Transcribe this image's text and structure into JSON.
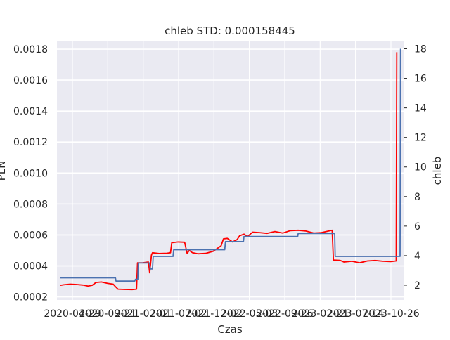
{
  "chart_data": {
    "type": "line",
    "title": "chleb STD: 0.000158445",
    "xlabel": "Czas",
    "ylabel_left": "PLN",
    "ylabel_right": "chleb",
    "x_tick_labels": [
      "2020-04-29",
      "2020-09-21",
      "2021-02-01",
      "2021-07-02",
      "2021-12-02",
      "2022-05-03",
      "2022-09-26",
      "2023-02-21",
      "2023-07-14",
      "2023-10-26"
    ],
    "ylim_left": [
      0.00018,
      0.00185
    ],
    "ylim_right": [
      1.0,
      18.5
    ],
    "y_ticks_left": [
      0.0002,
      0.0004,
      0.0006,
      0.0008,
      0.001,
      0.0012,
      0.0014,
      0.0016,
      0.0018
    ],
    "y_ticks_left_labels": [
      "0.0002",
      "0.0004",
      "0.0006",
      "0.0008",
      "0.0010",
      "0.0012",
      "0.0014",
      "0.0016",
      "0.0018"
    ],
    "y_ticks_right": [
      2,
      4,
      6,
      8,
      10,
      12,
      14,
      16,
      18
    ],
    "y_ticks_right_labels": [
      "2",
      "4",
      "6",
      "8",
      "10",
      "12",
      "14",
      "16",
      "18"
    ],
    "grid": true,
    "x_range": [
      "2020-03-24",
      "2023-12-22"
    ],
    "series": [
      {
        "axis": "left",
        "color": "#ff0000",
        "points": [
          [
            "2020-04-07",
            0.000275
          ],
          [
            "2020-04-20",
            0.000278
          ],
          [
            "2020-05-15",
            0.000282
          ],
          [
            "2020-06-10",
            0.00028
          ],
          [
            "2020-07-05",
            0.000276
          ],
          [
            "2020-07-25",
            0.00027
          ],
          [
            "2020-08-10",
            0.000275
          ],
          [
            "2020-08-25",
            0.000293
          ],
          [
            "2020-09-15",
            0.000296
          ],
          [
            "2020-10-10",
            0.000287
          ],
          [
            "2020-11-01",
            0.000282
          ],
          [
            "2020-11-10",
            0.000266
          ],
          [
            "2020-11-20",
            0.00025
          ],
          [
            "2020-12-15",
            0.000248
          ],
          [
            "2021-01-15",
            0.000247
          ],
          [
            "2021-02-01",
            0.00025
          ],
          [
            "2021-02-05",
            0.00042
          ],
          [
            "2021-02-25",
            0.00042
          ],
          [
            "2021-03-20",
            0.000425
          ],
          [
            "2021-03-25",
            0.000355
          ],
          [
            "2021-04-01",
            0.00047
          ],
          [
            "2021-04-05",
            0.000485
          ],
          [
            "2021-05-01",
            0.00048
          ],
          [
            "2021-06-01",
            0.000482
          ],
          [
            "2021-06-15",
            0.000485
          ],
          [
            "2021-06-20",
            0.00055
          ],
          [
            "2021-07-15",
            0.000555
          ],
          [
            "2021-08-10",
            0.000553
          ],
          [
            "2021-08-20",
            0.00048
          ],
          [
            "2021-08-28",
            0.0005
          ],
          [
            "2021-09-10",
            0.000485
          ],
          [
            "2021-10-01",
            0.000478
          ],
          [
            "2021-11-01",
            0.000481
          ],
          [
            "2021-12-01",
            0.000495
          ],
          [
            "2022-01-01",
            0.00053
          ],
          [
            "2022-01-10",
            0.000575
          ],
          [
            "2022-01-25",
            0.000578
          ],
          [
            "2022-02-15",
            0.000555
          ],
          [
            "2022-03-05",
            0.00057
          ],
          [
            "2022-03-15",
            0.000595
          ],
          [
            "2022-04-01",
            0.000605
          ],
          [
            "2022-04-15",
            0.00059
          ],
          [
            "2022-05-05",
            0.000618
          ],
          [
            "2022-06-01",
            0.000615
          ],
          [
            "2022-07-01",
            0.00061
          ],
          [
            "2022-08-01",
            0.000622
          ],
          [
            "2022-09-01",
            0.000612
          ],
          [
            "2022-10-01",
            0.000628
          ],
          [
            "2022-11-01",
            0.00063
          ],
          [
            "2022-12-01",
            0.000625
          ],
          [
            "2023-01-01",
            0.000612
          ],
          [
            "2023-02-01",
            0.000615
          ],
          [
            "2023-03-01",
            0.000625
          ],
          [
            "2023-03-15",
            0.00063
          ],
          [
            "2023-03-20",
            0.000438
          ],
          [
            "2023-04-15",
            0.000436
          ],
          [
            "2023-05-01",
            0.000425
          ],
          [
            "2023-06-01",
            0.00043
          ],
          [
            "2023-07-01",
            0.00042
          ],
          [
            "2023-08-01",
            0.000432
          ],
          [
            "2023-09-01",
            0.000435
          ],
          [
            "2023-10-01",
            0.00043
          ],
          [
            "2023-11-01",
            0.000428
          ],
          [
            "2023-11-23",
            0.000432
          ],
          [
            "2023-11-25",
            0.00178
          ]
        ]
      },
      {
        "axis": "right",
        "color": "#4c72b0",
        "points": [
          [
            "2020-04-07",
            2.5
          ],
          [
            "2020-11-10",
            2.5
          ],
          [
            "2020-11-12",
            2.28
          ],
          [
            "2021-01-25",
            2.28
          ],
          [
            "2021-01-28",
            2.4
          ],
          [
            "2021-02-06",
            2.4
          ],
          [
            "2021-02-08",
            3.5
          ],
          [
            "2021-03-25",
            3.5
          ],
          [
            "2021-03-27",
            3.1
          ],
          [
            "2021-04-05",
            3.1
          ],
          [
            "2021-04-08",
            3.95
          ],
          [
            "2021-06-25",
            3.95
          ],
          [
            "2021-06-28",
            4.4
          ],
          [
            "2022-01-15",
            4.4
          ],
          [
            "2022-01-18",
            4.95
          ],
          [
            "2022-03-30",
            4.95
          ],
          [
            "2022-04-01",
            5.3
          ],
          [
            "2022-10-30",
            5.3
          ],
          [
            "2022-11-01",
            5.5
          ],
          [
            "2023-03-25",
            5.5
          ],
          [
            "2023-03-27",
            3.95
          ],
          [
            "2023-12-08",
            3.95
          ],
          [
            "2023-12-10",
            18.0
          ]
        ]
      }
    ]
  }
}
